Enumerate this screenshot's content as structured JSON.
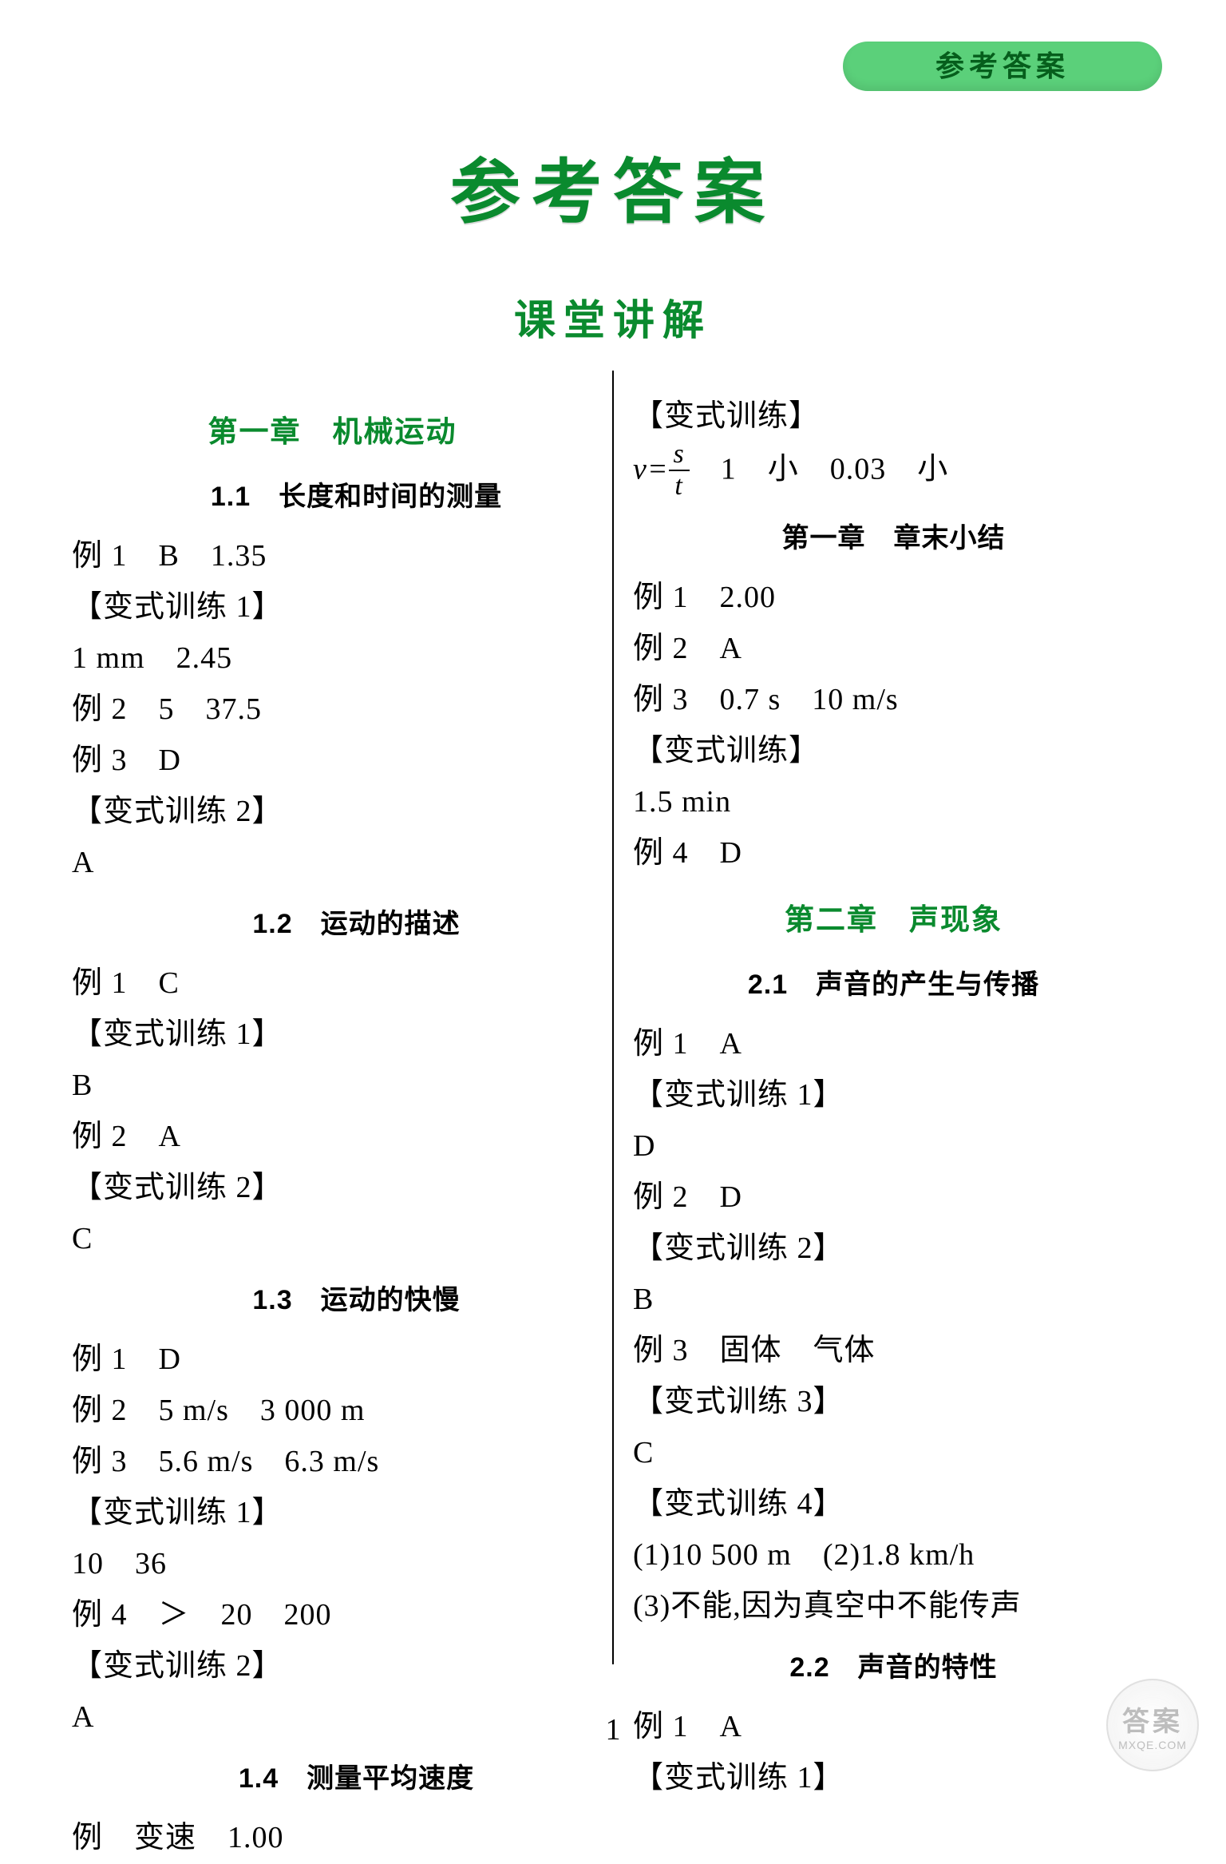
{
  "colors": {
    "green_dark": "#0a8a2e",
    "pill_bg": "#5bd07a",
    "pill_text": "#065e1c",
    "text": "#000000",
    "background": "#ffffff"
  },
  "header_pill": "参考答案",
  "main_title": "参考答案",
  "sub_title": "课堂讲解",
  "page_number": "1",
  "watermark": {
    "big": "答案",
    "small": "MXQE.COM"
  },
  "left": {
    "chapter": "第一章　机械运动",
    "s1": {
      "head": "1.1　长度和时间的测量",
      "l1": "例 1　B　1.35",
      "l2": "【变式训练 1】",
      "l3": "1 mm　2.45",
      "l4": "例 2　5　37.5",
      "l5": "例 3　D",
      "l6": "【变式训练 2】",
      "l7": "A"
    },
    "s2": {
      "head": "1.2　运动的描述",
      "l1": "例 1　C",
      "l2": "【变式训练 1】",
      "l3": "B",
      "l4": "例 2　A",
      "l5": "【变式训练 2】",
      "l6": "C"
    },
    "s3": {
      "head": "1.3　运动的快慢",
      "l1": "例 1　D",
      "l2": "例 2　5 m/s　3 000 m",
      "l3": "例 3　5.6 m/s　6.3 m/s",
      "l4": "【变式训练 1】",
      "l5": "10　36",
      "l6": "例 4　＞　20　200",
      "l7": "【变式训练 2】",
      "l8": "A"
    },
    "s4": {
      "head": "1.4　测量平均速度",
      "l1": "例　变速　1.00"
    }
  },
  "right": {
    "top": {
      "l1": "【变式训练】",
      "formula": {
        "lhs_v": "v",
        "eq": "=",
        "num": "s",
        "den": "t",
        "rest": "　1　小　0.03　小"
      }
    },
    "chapter1_end": {
      "head": "第一章　章末小结",
      "l1": "例 1　2.00",
      "l2": "例 2　A",
      "l3": "例 3　0.7 s　10 m/s",
      "l4": "【变式训练】",
      "l5": "1.5 min",
      "l6": "例 4　D"
    },
    "chapter2": "第二章　声现象",
    "s21": {
      "head": "2.1　声音的产生与传播",
      "l1": "例 1　A",
      "l2": "【变式训练 1】",
      "l3": "D",
      "l4": "例 2　D",
      "l5": "【变式训练 2】",
      "l6": "B",
      "l7": "例 3　固体　气体",
      "l8": "【变式训练 3】",
      "l9": "C",
      "l10": "【变式训练 4】",
      "l11": "(1)10 500 m　(2)1.8 km/h",
      "l12": "(3)不能,因为真空中不能传声"
    },
    "s22": {
      "head": "2.2　声音的特性",
      "l1": "例 1　A",
      "l2": "【变式训练 1】"
    }
  }
}
